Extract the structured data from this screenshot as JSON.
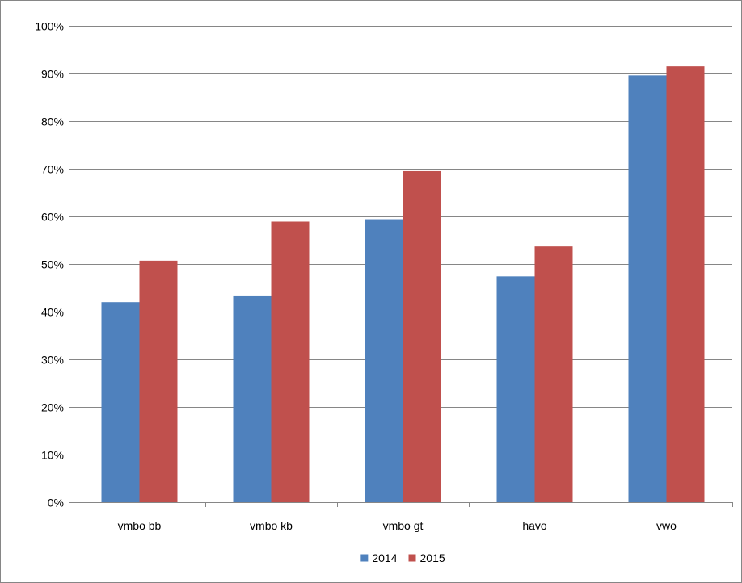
{
  "chart_data": {
    "type": "bar",
    "categories": [
      "vmbo bb",
      "vmbo kb",
      "vmbo gt",
      "havo",
      "vwo"
    ],
    "series": [
      {
        "name": "2014",
        "color": "#4F81BD",
        "values": [
          42.0,
          43.4,
          59.4,
          47.4,
          89.6
        ]
      },
      {
        "name": "2015",
        "color": "#C0504D",
        "values": [
          50.7,
          58.9,
          69.5,
          53.7,
          91.5
        ]
      }
    ],
    "ylim": [
      0,
      100
    ],
    "yticks": [
      0,
      10,
      20,
      30,
      40,
      50,
      60,
      70,
      80,
      90,
      100
    ],
    "ytick_format": "percent",
    "grid": true,
    "legend_position": "bottom"
  }
}
